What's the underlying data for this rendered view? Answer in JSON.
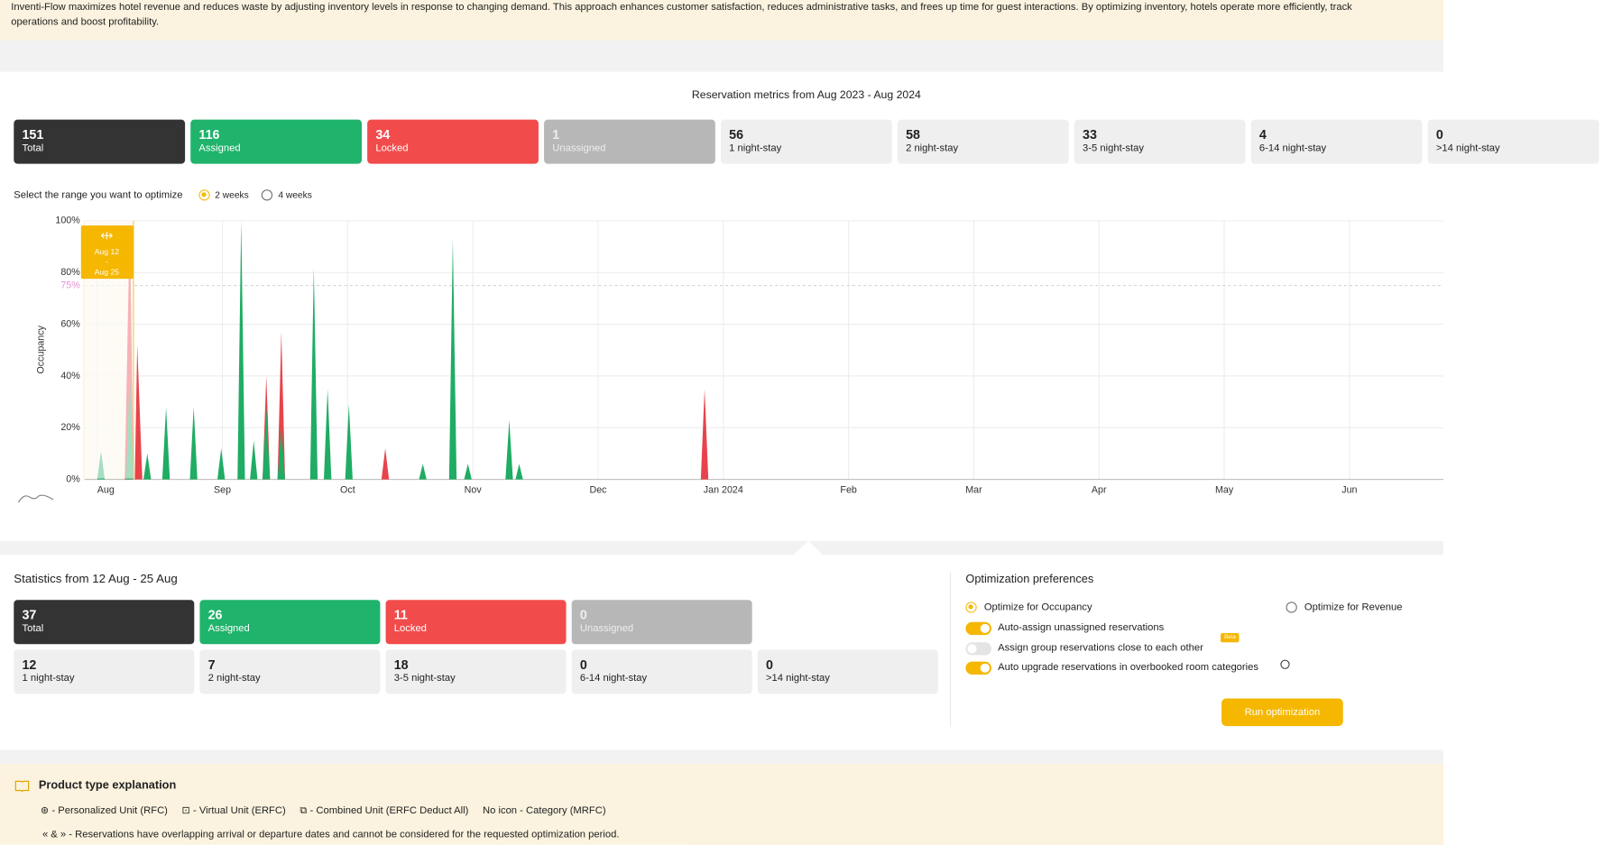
{
  "banner": {
    "lines": [
      "Inventi-Flow maximizes hotel revenue and reduces waste by adjusting inventory levels in response to changing demand. This approach enhances customer satisfaction, reduces administrative tasks, and frees up time for guest interactions. By optimizing inventory, hotels operate more efficiently, track",
      "operations and boost profitability."
    ]
  },
  "metrics": {
    "title": "Reservation metrics from Aug 2023 - Aug 2024",
    "cards": [
      {
        "value": 151,
        "label": "Total",
        "color": "#333333"
      },
      {
        "value": 116,
        "label": "Assigned",
        "color": "#1fb36b"
      },
      {
        "value": 34,
        "label": "Locked",
        "color": "#f24b4b"
      },
      {
        "value": 1,
        "label": "Unassigned",
        "color": "#b7b7b7"
      },
      {
        "value": 56,
        "label": "1 night-stay",
        "color": "#efefef"
      },
      {
        "value": 58,
        "label": "2 night-stay",
        "color": "#efefef"
      },
      {
        "value": 33,
        "label": "3-5 night-stay",
        "color": "#efefef"
      },
      {
        "value": 4,
        "label": "6-14 night-stay",
        "color": "#efefef"
      },
      {
        "value": 0,
        "label": ">14 night-stay",
        "color": "#efefef"
      }
    ]
  },
  "range": {
    "label": "Select the range you want to optimize",
    "options": [
      "2 weeks",
      "4 weeks"
    ],
    "selected": 0
  },
  "chart_data": {
    "type": "area",
    "y_label": "Occupancy",
    "selection": [
      "Aug 12",
      "-",
      "Aug 25"
    ],
    "xlim": [
      -0.1,
      10.75
    ],
    "xticks": [
      {
        "value": 0,
        "label": "Aug"
      },
      {
        "value": 1,
        "label": "Sep"
      },
      {
        "value": 2,
        "label": "Oct"
      },
      {
        "value": 3,
        "label": "Nov"
      },
      {
        "value": 4,
        "label": "Dec"
      },
      {
        "value": 5,
        "label": "Jan 2024"
      },
      {
        "value": 6,
        "label": "Feb"
      },
      {
        "value": 7,
        "label": "Mar"
      },
      {
        "value": 8,
        "label": "Apr"
      },
      {
        "value": 9,
        "label": "May"
      },
      {
        "value": 10,
        "label": "Jun"
      }
    ],
    "ylim": [
      0,
      100
    ],
    "yticks": [
      {
        "value": 0,
        "label": "0%"
      },
      {
        "value": 20,
        "label": "20%"
      },
      {
        "value": 40,
        "label": "40%"
      },
      {
        "value": 60,
        "label": "60%"
      },
      {
        "value": 80,
        "label": "80%"
      },
      {
        "value": 100,
        "label": "100%"
      }
    ],
    "threshold": {
      "value": 75,
      "label": "75%",
      "color": "#e58fd8"
    },
    "grid": true,
    "series": [
      {
        "color": "#e8434b",
        "x": [
          0.22,
          0.26,
          0.29,
          0.3,
          0.32,
          0.36,
          1.32,
          1.35,
          1.38,
          1.44,
          1.47,
          1.5,
          2.27,
          2.3,
          2.33,
          4.82,
          4.85,
          4.88
        ],
        "values": [
          0,
          100,
          0,
          0,
          52,
          0,
          0,
          40,
          0,
          0,
          57,
          0,
          0,
          12,
          0,
          0,
          35,
          0
        ]
      },
      {
        "color": "#1fac64",
        "x": [
          0,
          0.03,
          0.06,
          0.23,
          0.26,
          0.29,
          0.37,
          0.4,
          0.43,
          0.52,
          0.55,
          0.58,
          0.74,
          0.77,
          0.8,
          0.96,
          0.99,
          1.02,
          1.12,
          1.15,
          1.18,
          1.22,
          1.25,
          1.28,
          1.32,
          1.35,
          1.38,
          1.44,
          1.47,
          1.5,
          1.7,
          1.73,
          1.76,
          1.81,
          1.84,
          1.87,
          1.98,
          2.01,
          2.04,
          2.57,
          2.6,
          2.63,
          2.81,
          2.84,
          2.87,
          2.93,
          2.96,
          2.99,
          3.26,
          3.29,
          3.32,
          3.34,
          3.37,
          3.4
        ],
        "values": [
          0,
          11,
          0,
          0,
          40,
          0,
          0,
          10,
          0,
          0,
          28,
          0,
          0,
          28,
          0,
          0,
          12,
          0,
          0,
          100,
          0,
          0,
          15,
          0,
          0,
          28,
          0,
          0,
          20,
          0,
          0,
          82,
          0,
          0,
          35,
          0,
          0,
          29,
          0,
          0,
          6,
          0,
          0,
          93,
          0,
          0,
          6,
          0,
          0,
          23,
          0,
          0,
          6,
          0
        ]
      }
    ]
  },
  "statistics": {
    "title": "Statistics from 12 Aug - 25 Aug",
    "cards": [
      {
        "value": 37,
        "label": "Total",
        "color": "#333333"
      },
      {
        "value": 26,
        "label": "Assigned",
        "color": "#1fb36b"
      },
      {
        "value": 11,
        "label": "Locked",
        "color": "#f24b4b"
      },
      {
        "value": 0,
        "label": "Unassigned",
        "color": "#b7b7b7"
      }
    ],
    "stay_cards": [
      {
        "value": 12,
        "label": "1 night-stay",
        "color": "#efefef"
      },
      {
        "value": 7,
        "label": "2 night-stay",
        "color": "#efefef"
      },
      {
        "value": 18,
        "label": "3-5 night-stay",
        "color": "#efefef"
      },
      {
        "value": 0,
        "label": "6-14 night-stay",
        "color": "#efefef"
      },
      {
        "value": 0,
        "label": ">14 night-stay",
        "color": "#efefef"
      }
    ]
  },
  "preferences": {
    "title": "Optimization preferences",
    "options": [
      "Optimize for Occupancy",
      "Optimize for Revenue"
    ],
    "selected": 0,
    "toggles": [
      {
        "label": "Auto-assign unassigned reservations",
        "on": true
      },
      {
        "label": "Assign group reservations close to each other",
        "on": false
      },
      {
        "label": "Auto upgrade reservations in overbooked room categories",
        "on": true
      }
    ],
    "badge": "Beta",
    "button": "Run optimization"
  },
  "explanation": {
    "title": "Product type explanation",
    "items": [
      "- Personalized Unit (RFC)",
      "- Virtual Unit (ERFC)",
      "- Combined Unit (ERFC Deduct All)",
      "No icon - Category (MRFC)"
    ],
    "note": "« & » - Reservations have overlapping arrival or departure dates and cannot be considered for the requested optimization period."
  }
}
